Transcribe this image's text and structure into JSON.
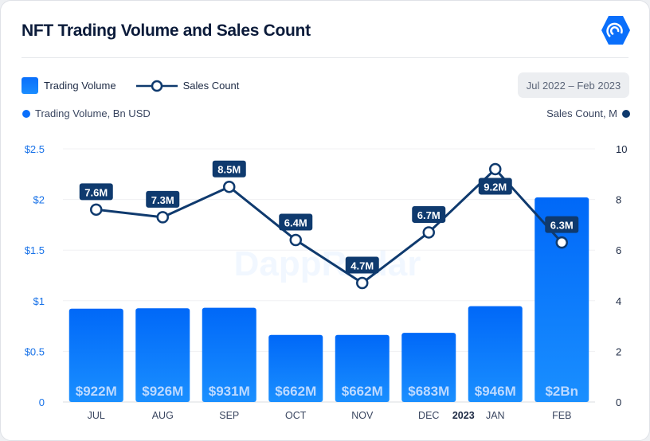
{
  "header": {
    "title": "NFT Trading Volume and Sales Count",
    "logo_icon": "dappradar-logo-icon",
    "watermark": "DappRadar"
  },
  "legend": {
    "bar_label": "Trading Volume",
    "line_label": "Sales Count"
  },
  "date_range": "Jul 2022 – Feb 2023",
  "colors": {
    "bar": "#0a6ffb",
    "line": "#0f3a6e",
    "left_axis": "#1a73e8",
    "right_axis": "#1d2a44"
  },
  "chart_data": {
    "type": "bar+line",
    "title": "NFT Trading Volume and Sales Count",
    "categories": [
      "JUL",
      "AUG",
      "SEP",
      "OCT",
      "NOV",
      "DEC",
      "JAN",
      "FEB"
    ],
    "year_marker": {
      "label": "2023",
      "before": "JAN"
    },
    "left_axis": {
      "label": "Trading Volume, Bn USD",
      "range": [
        0,
        2.5
      ],
      "ticks": [
        "0",
        "$0.5",
        "$1",
        "$1.5",
        "$2",
        "$2.5"
      ],
      "tick_values": [
        0,
        0.5,
        1,
        1.5,
        2,
        2.5
      ]
    },
    "right_axis": {
      "label": "Sales Count, M",
      "range": [
        0,
        10
      ],
      "ticks": [
        "0",
        "2",
        "4",
        "6",
        "8",
        "10"
      ],
      "tick_values": [
        0,
        2,
        4,
        6,
        8,
        10
      ]
    },
    "grid": true,
    "series": [
      {
        "name": "Trading Volume",
        "type": "bar",
        "axis": "left",
        "values": [
          0.922,
          0.926,
          0.931,
          0.662,
          0.662,
          0.683,
          0.946,
          2.02
        ],
        "labels": [
          "$922M",
          "$926M",
          "$931M",
          "$662M",
          "$662M",
          "$683M",
          "$946M",
          "$2Bn"
        ]
      },
      {
        "name": "Sales Count",
        "type": "line",
        "axis": "right",
        "values": [
          7.6,
          7.3,
          8.5,
          6.4,
          4.7,
          6.7,
          9.2,
          6.3
        ],
        "labels": [
          "7.6M",
          "7.3M",
          "8.5M",
          "6.4M",
          "4.7M",
          "6.7M",
          "9.2M",
          "6.3M"
        ]
      }
    ],
    "legend_position": "top-left"
  }
}
